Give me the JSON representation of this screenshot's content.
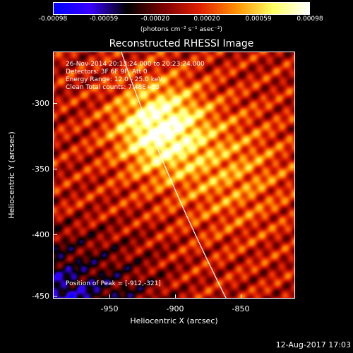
{
  "colorbar": {
    "ticks": [
      "-0.00098",
      "-0.00059",
      "-0.00020",
      "0.00020",
      "0.00059",
      "0.00098"
    ],
    "unit": "(photons cm⁻² s⁻¹ asec⁻²)",
    "colors": [
      "#0000ff",
      "#3a00ff",
      "#000000",
      "#7a0000",
      "#e02000",
      "#ff9000",
      "#ffff60",
      "#ffffff"
    ]
  },
  "plot": {
    "title": "Reconstructed RHESSI Image",
    "info_lines": [
      "26-Nov-2014 20:13:24.000 to 20:23:24.000",
      "Detectors: 3F 6F 9F, Att 0",
      "Energy Range: 12.0 - 25.0 keV",
      "Clean     Total counts: 7.48E+03"
    ],
    "peak_label": "Position of Peak = [-912,-321]",
    "xlabel": "Heliocentric X (arcsec)",
    "ylabel": "Heliocentric Y (arcsec)",
    "x_ticks": [
      "-950",
      "-900",
      "-850"
    ],
    "y_ticks": [
      "-300",
      "-350",
      "-400",
      "-450"
    ],
    "x_range": [
      -992,
      -808
    ],
    "y_range": [
      -452,
      -264
    ],
    "peak_position": [
      -912,
      -321
    ]
  },
  "footer": {
    "date": "12-Aug-2017 17:03"
  }
}
